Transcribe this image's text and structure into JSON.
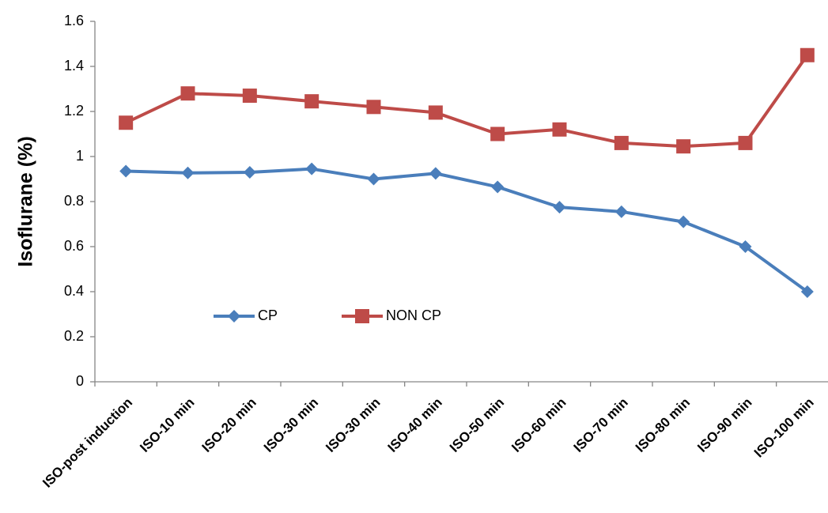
{
  "chart_data": {
    "type": "line",
    "y_label": "Isoflurane (%)",
    "categories": [
      "ISO-post induction",
      "ISO-10 min",
      "ISO-20 min",
      "ISO-30 min",
      "ISO-30 min",
      "ISO-40 min",
      "ISO-50 min",
      "ISO-60 min",
      "ISO-70 min",
      "ISO-80 min",
      "ISO-90 min",
      "ISO-100 min"
    ],
    "series": [
      {
        "name": "CP",
        "color": "#4a7ebb",
        "marker": "diamond",
        "values": [
          0.935,
          0.927,
          0.93,
          0.945,
          0.9,
          0.925,
          0.865,
          0.775,
          0.755,
          0.71,
          0.6,
          0.4
        ]
      },
      {
        "name": "NON CP",
        "color": "#be4b48",
        "marker": "square",
        "values": [
          1.15,
          1.28,
          1.27,
          1.245,
          1.22,
          1.195,
          1.1,
          1.12,
          1.06,
          1.045,
          1.06,
          1.45
        ]
      }
    ],
    "ylim": [
      0,
      1.6
    ],
    "yticks": [
      0,
      0.2,
      0.4,
      0.6,
      0.8,
      1,
      1.2,
      1.4,
      1.6
    ],
    "grid": false,
    "legend": "inside-lower-left"
  }
}
